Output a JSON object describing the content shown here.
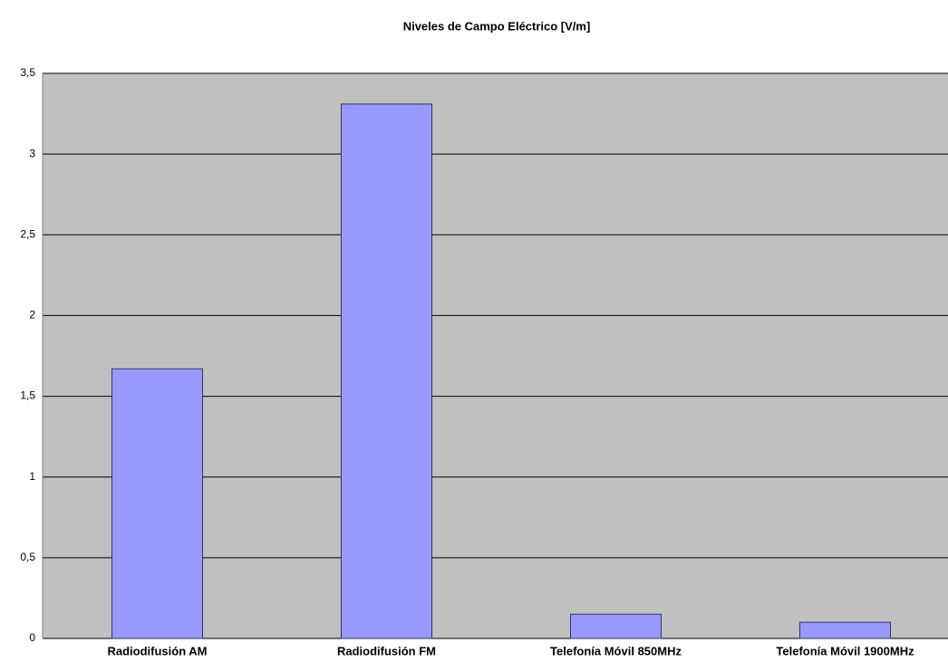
{
  "chart_data": {
    "type": "bar",
    "title": "Niveles de Campo Eléctrico [V/m]",
    "categories": [
      "Radiodifusión AM",
      "Radiodifusión FM",
      "Telefonía Móvil 850MHz",
      "Telefonía Móvil 1900MHz"
    ],
    "values": [
      1.67,
      3.31,
      0.15,
      0.1
    ],
    "color": "#9999ff",
    "ylim": [
      0,
      3.5
    ],
    "yticks": [
      0,
      {
        "value": 0.5,
        "label": "0,5"
      },
      1,
      {
        "value": 1.5,
        "label": "1,5"
      },
      2,
      {
        "value": 2.5,
        "label": "2,5"
      },
      3,
      {
        "value": 3.5,
        "label": "3,5"
      }
    ],
    "grid": true
  }
}
